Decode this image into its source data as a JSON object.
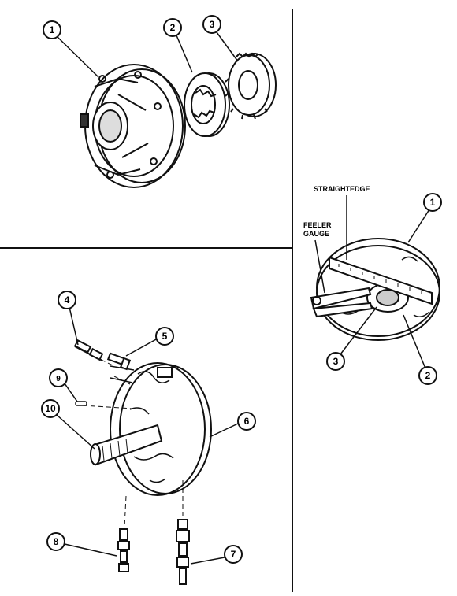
{
  "figure": {
    "panels": {
      "top_left": {
        "callouts": [
          "1",
          "2",
          "3"
        ]
      },
      "right": {
        "labels": {
          "straightedge": "STRAIGHTEDGE",
          "feeler_gauge_line1": "FEELER",
          "feeler_gauge_line2": "GAUGE"
        },
        "callouts": [
          "1",
          "2",
          "3"
        ]
      },
      "bottom_left": {
        "callouts": [
          "4",
          "5",
          "6",
          "7",
          "8",
          "9",
          "10"
        ]
      }
    },
    "colors": {
      "ink": "#111111",
      "paper": "#ffffff"
    }
  }
}
